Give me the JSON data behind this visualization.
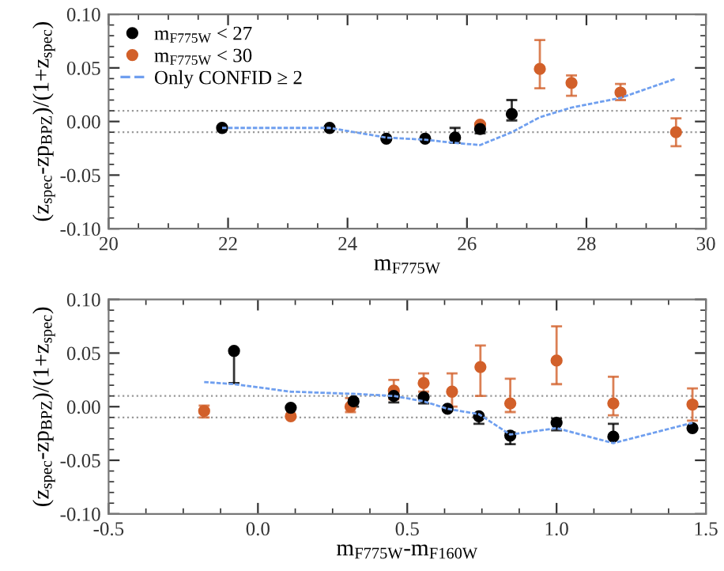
{
  "chart_data": [
    {
      "type": "scatter",
      "xlabel": "m$_{F775W}$",
      "ylabel": "(z$_{spec}$-zp$_{BPZ}$)/(1+z$_{spec}$)",
      "xlim": [
        20,
        30
      ],
      "xticks": [
        20,
        22,
        24,
        26,
        28,
        30
      ],
      "ylim": [
        -0.1,
        0.1
      ],
      "yticks": [
        {
          "value": -0.1,
          "label": "-0.10"
        },
        {
          "value": -0.05,
          "label": "-0.05"
        },
        {
          "value": 0,
          "label": "0.00"
        },
        {
          "value": 0.05,
          "label": "0.05"
        },
        {
          "value": 0.1,
          "label": "0.10"
        }
      ],
      "legend": "top left",
      "grid": false,
      "ref_lines": [
        {
          "axis": "y",
          "value": 0.01,
          "color": "#999999",
          "line_style": "dotted"
        },
        {
          "axis": "y",
          "value": -0.01,
          "color": "#999999",
          "line_style": "dotted"
        }
      ],
      "series": [
        {
          "name": "m$_{F775W}$ < 27",
          "marker": "circle",
          "color": "#000000",
          "x": [
            21.9,
            23.7,
            24.65,
            25.3,
            25.8,
            26.22,
            26.75
          ],
          "values": [
            -0.006,
            -0.006,
            -0.016,
            -0.016,
            -0.015,
            -0.007,
            0.007
          ],
          "errors": [
            null,
            null,
            null,
            null,
            [
              -0.02,
              -0.006
            ],
            [
              -0.011,
              -0.002
            ],
            [
              0.001,
              0.02
            ]
          ]
        },
        {
          "name": "m$_{F775W}$ < 30",
          "marker": "circle",
          "color": "#d2602a",
          "x": [
            26.22,
            27.22,
            27.75,
            28.57,
            29.5
          ],
          "values": [
            -0.003,
            0.049,
            0.036,
            0.027,
            -0.01
          ],
          "errors": [
            null,
            [
              0.031,
              0.076
            ],
            [
              0.024,
              0.043
            ],
            [
              0.02,
              0.035
            ],
            [
              -0.023,
              0.003
            ]
          ]
        },
        {
          "name": "Only CONFID ≥ 2",
          "type": "line",
          "color": "#6f9fef",
          "line_style": "dashed",
          "x": [
            21.9,
            23.7,
            24.65,
            25.3,
            25.8,
            26.22,
            26.75,
            27.22,
            27.75,
            28.57,
            29.5
          ],
          "values": [
            -0.006,
            -0.006,
            -0.015,
            -0.017,
            -0.02,
            -0.022,
            -0.01,
            0.004,
            0.013,
            0.022,
            0.04
          ]
        }
      ]
    },
    {
      "type": "scatter",
      "xlabel": "m$_{F775W}$-m$_{F160W}$",
      "ylabel": "(z$_{spec}$-zp$_{BPZ}$)/(1+z$_{spec}$)",
      "xlim": [
        -0.5,
        1.5
      ],
      "xticks": [
        {
          "value": -0.5,
          "label": "-0.5"
        },
        {
          "value": 0,
          "label": "0.0"
        },
        {
          "value": 0.5,
          "label": "0.5"
        },
        {
          "value": 1,
          "label": "1.0"
        },
        {
          "value": 1.5,
          "label": "1.5"
        }
      ],
      "ylim": [
        -0.1,
        0.1
      ],
      "yticks": [
        {
          "value": -0.1,
          "label": "-0.10"
        },
        {
          "value": -0.05,
          "label": "-0.05"
        },
        {
          "value": 0,
          "label": "0.00"
        },
        {
          "value": 0.05,
          "label": "0.05"
        },
        {
          "value": 0.1,
          "label": "0.10"
        }
      ],
      "grid": false,
      "ref_lines": [
        {
          "axis": "y",
          "value": 0.01,
          "color": "#999999",
          "line_style": "dotted"
        },
        {
          "axis": "y",
          "value": -0.01,
          "color": "#999999",
          "line_style": "dotted"
        }
      ],
      "series": [
        {
          "color": "#000000",
          "marker": "circle",
          "x": [
            -0.08,
            0.11,
            0.32,
            0.455,
            0.555,
            0.635,
            0.74,
            0.845,
            1.0,
            1.19,
            1.455
          ],
          "values": [
            0.052,
            -0.001,
            0.005,
            0.01,
            0.009,
            -0.002,
            -0.009,
            -0.027,
            -0.015,
            -0.028,
            -0.02
          ],
          "errors": [
            [
              0.022,
              0.052
            ],
            null,
            [
              0.0,
              0.007
            ],
            [
              0.004,
              0.014
            ],
            [
              0.003,
              0.01
            ],
            null,
            [
              -0.016,
              -0.009
            ],
            [
              -0.035,
              -0.024
            ],
            [
              -0.022,
              -0.011
            ],
            [
              -0.028,
              -0.016
            ],
            null
          ]
        },
        {
          "color": "#d2602a",
          "marker": "circle",
          "x": [
            -0.18,
            0.11,
            0.31,
            0.455,
            0.555,
            0.65,
            0.745,
            0.845,
            1.0,
            1.19,
            1.455
          ],
          "values": [
            -0.004,
            -0.009,
            0.0,
            0.015,
            0.022,
            0.014,
            0.037,
            0.003,
            0.043,
            0.003,
            0.002
          ],
          "errors": [
            [
              -0.01,
              0.001
            ],
            null,
            [
              -0.005,
              0.008
            ],
            [
              0.007,
              0.025
            ],
            [
              0.014,
              0.031
            ],
            [
              0.0,
              0.031
            ],
            [
              0.01,
              0.057
            ],
            [
              -0.005,
              0.026
            ],
            [
              0.021,
              0.075
            ],
            [
              -0.008,
              0.028
            ],
            [
              -0.013,
              0.017
            ]
          ]
        },
        {
          "type": "line",
          "color": "#6f9fef",
          "line_style": "dashed",
          "x": [
            -0.18,
            -0.08,
            0.11,
            0.32,
            0.455,
            0.555,
            0.635,
            0.74,
            0.845,
            1.0,
            1.19,
            1.455
          ],
          "values": [
            0.023,
            0.021,
            0.014,
            0.012,
            0.01,
            0.005,
            -0.002,
            -0.007,
            -0.026,
            -0.02,
            -0.034,
            -0.015
          ]
        }
      ]
    }
  ]
}
